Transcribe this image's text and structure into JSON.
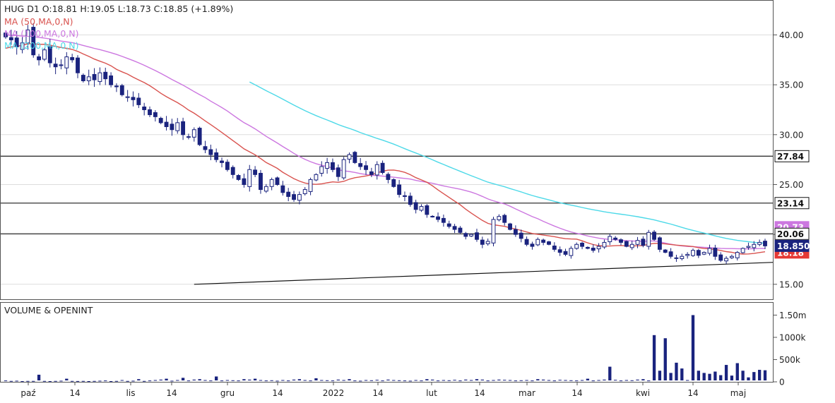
{
  "header": {
    "line1": "HUG  D1  O:18.81  H:19.05  L:18.73  C:18.85  (+1.89%)",
    "line2": "MA (50,MA,0,N)",
    "line3": "MA (100,MA,0,N)",
    "line4": "MA (200,MA,0,N)"
  },
  "volume_panel": {
    "title": "VOLUME & OPENINT"
  },
  "colors": {
    "candle": "#1a237e",
    "ma50": "#d9534f",
    "ma100": "#cc77e0",
    "ma200": "#4dd9e8",
    "hline": "#333333",
    "grid": "#dddddd",
    "volume": "#1a237e"
  },
  "chart_data": [
    {
      "type": "candlestick",
      "title": "HUG  D1",
      "ylim": [
        13.5,
        43.5
      ],
      "yticks": [
        "40.00",
        "35.00",
        "30.00",
        "25.00",
        "20.00",
        "15.00"
      ],
      "ytick_values": [
        40,
        35,
        30,
        25,
        20,
        15
      ],
      "x_labels": [
        "paź",
        "14",
        "lis",
        "14",
        "gru",
        "14",
        "2022",
        "14",
        "lut",
        "14",
        "mar",
        "14",
        "kwi",
        "14",
        "maj"
      ],
      "price_tags": [
        {
          "label": "27.84",
          "value": 27.84,
          "kind": "hline"
        },
        {
          "label": "23.14",
          "value": 23.14,
          "kind": "hline"
        },
        {
          "label": "20.06",
          "value": 20.06,
          "kind": "hline"
        },
        {
          "label": "18.850",
          "value": 18.85,
          "kind": "last"
        },
        {
          "label": "20.73",
          "value": 20.73,
          "kind": "ma100"
        },
        {
          "label": "18.18",
          "value": 18.18,
          "kind": "ma50"
        }
      ],
      "trendline": {
        "from": {
          "bar": 34,
          "value": 15.0
        },
        "to": {
          "bar": 139,
          "value": 17.2
        }
      },
      "closes": [
        39.8,
        39.5,
        38.8,
        39.2,
        40.5,
        38.0,
        37.5,
        38.5,
        37.2,
        36.8,
        37.0,
        37.8,
        37.5,
        36.2,
        35.4,
        35.8,
        35.5,
        36.2,
        35.6,
        35.0,
        34.8,
        34.0,
        33.8,
        33.5,
        33.0,
        32.5,
        32.0,
        31.8,
        31.2,
        30.8,
        30.5,
        31.2,
        30.0,
        29.8,
        30.5,
        29.0,
        28.5,
        28.0,
        27.5,
        27.2,
        26.5,
        26.0,
        25.5,
        25.0,
        26.5,
        26.0,
        24.5,
        24.8,
        25.5,
        25.0,
        24.2,
        23.8,
        23.5,
        24.0,
        24.5,
        25.5,
        26.0,
        26.8,
        27.2,
        26.5,
        25.8,
        27.5,
        28.0,
        27.2,
        26.8,
        26.5,
        26.0,
        27.0,
        26.2,
        25.5,
        24.8,
        24.0,
        23.8,
        23.0,
        22.5,
        22.8,
        22.0,
        21.8,
        21.5,
        21.2,
        20.8,
        20.5,
        20.2,
        19.8,
        20.0,
        19.5,
        19.0,
        19.3,
        21.5,
        21.8,
        21.2,
        20.5,
        20.0,
        19.6,
        19.0,
        18.8,
        19.5,
        19.2,
        19.0,
        18.5,
        18.2,
        18.0,
        18.6,
        19.0,
        18.8,
        18.6,
        18.4,
        18.8,
        19.2,
        19.8,
        19.5,
        19.2,
        18.8,
        19.0,
        19.4,
        18.9,
        20.2,
        19.5,
        18.5,
        18.2,
        17.8,
        17.6,
        17.8,
        18.0,
        18.4,
        17.9,
        18.2,
        18.6,
        17.8,
        17.4,
        17.6,
        17.8,
        18.2,
        18.6,
        18.8,
        19.0,
        19.2,
        18.85
      ],
      "volumes_k": [
        30,
        20,
        25,
        15,
        20,
        20,
        160,
        20,
        15,
        20,
        25,
        70,
        20,
        18,
        20,
        15,
        20,
        25,
        30,
        15,
        20,
        40,
        20,
        25,
        60,
        20,
        30,
        40,
        50,
        70,
        25,
        40,
        90,
        30,
        50,
        60,
        40,
        30,
        120,
        30,
        40,
        35,
        30,
        60,
        50,
        70,
        40,
        30,
        35,
        25,
        40,
        30,
        50,
        60,
        40,
        30,
        80,
        40,
        35,
        30,
        50,
        40,
        60,
        30,
        25,
        40,
        35,
        45,
        30,
        50,
        40,
        35,
        30,
        25,
        40,
        30,
        60,
        50,
        30,
        40,
        35,
        45,
        30,
        50,
        40,
        60,
        50,
        30,
        40,
        50,
        45,
        40,
        30,
        35,
        40,
        30,
        60,
        50,
        40,
        30,
        45,
        40,
        35,
        30,
        40,
        70,
        30,
        40,
        50,
        340,
        45,
        30,
        40,
        35,
        50,
        60,
        30,
        1050,
        250,
        980,
        200,
        430,
        300,
        40,
        1500,
        250,
        200,
        180,
        230,
        150,
        380,
        140,
        420,
        250,
        100,
        220,
        270,
        260,
        300,
        400
      ]
    }
  ]
}
